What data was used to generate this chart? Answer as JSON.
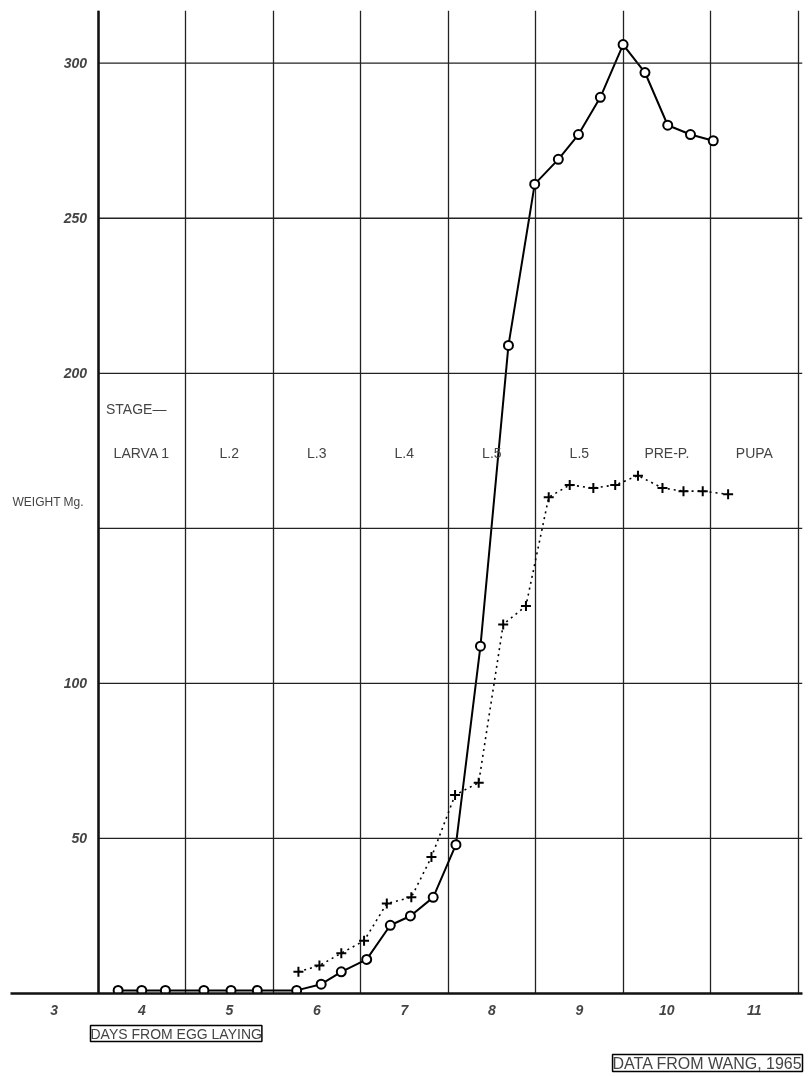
{
  "chart_data": {
    "type": "line",
    "xlabel": "DAYS FROM EGG LAYING",
    "ylabel": "WEIGHT Mg.",
    "xlim": [
      2.5,
      11.55
    ],
    "ylim": [
      0,
      317
    ],
    "xticks": [
      3,
      4,
      5,
      6,
      7,
      8,
      9,
      10,
      11,
      {
        "value": 3.5,
        "label": null
      },
      {
        "value": 4.5,
        "label": null
      },
      {
        "value": 5.5,
        "label": null
      },
      {
        "value": 6.5,
        "label": null
      },
      {
        "value": 7.5,
        "label": null
      },
      {
        "value": 8.5,
        "label": null
      },
      {
        "value": 9.5,
        "label": null
      },
      {
        "value": 10.5,
        "label": null
      },
      {
        "value": 11.5,
        "label": null
      }
    ],
    "yticks": [
      50,
      100,
      {
        "value": 150,
        "label": null
      },
      200,
      250,
      300
    ],
    "grid": true,
    "series": [
      {
        "color": "#000000",
        "marker": "circle",
        "line_style": "solid",
        "x": [
          3.73,
          4.0,
          4.27,
          4.71,
          5.02,
          5.32,
          5.77,
          6.05,
          6.28,
          6.57,
          6.84,
          7.07,
          7.33,
          7.59,
          7.87,
          8.19,
          8.49,
          8.76,
          8.99,
          9.24,
          9.5,
          9.75,
          10.01,
          10.27,
          10.53
        ],
        "values": [
          1,
          1,
          1,
          1,
          1,
          1,
          1,
          3,
          7,
          11,
          22,
          25,
          31,
          48,
          112,
          209,
          261,
          269,
          277,
          289,
          306,
          297,
          280,
          277,
          275
        ]
      },
      {
        "color": "#000000",
        "marker": "cross",
        "line_style": "dotted",
        "x": [
          5.79,
          6.03,
          6.28,
          6.54,
          6.8,
          7.08,
          7.31,
          7.58,
          7.85,
          8.13,
          8.39,
          8.65,
          8.89,
          9.16,
          9.41,
          9.67,
          9.95,
          10.19,
          10.41,
          10.7
        ],
        "values": [
          7,
          9,
          13,
          17,
          29,
          31,
          44,
          64,
          68,
          119,
          125,
          160,
          164,
          163,
          164,
          167,
          163,
          162,
          162,
          161
        ]
      }
    ],
    "annotations": [
      "STAGE—",
      "LARVA 1",
      "L.2",
      "L.3",
      "L.4",
      "L.5",
      "L.5",
      "PRE-P.",
      "PUPA",
      "DATA FROM WANG, 1965"
    ]
  }
}
